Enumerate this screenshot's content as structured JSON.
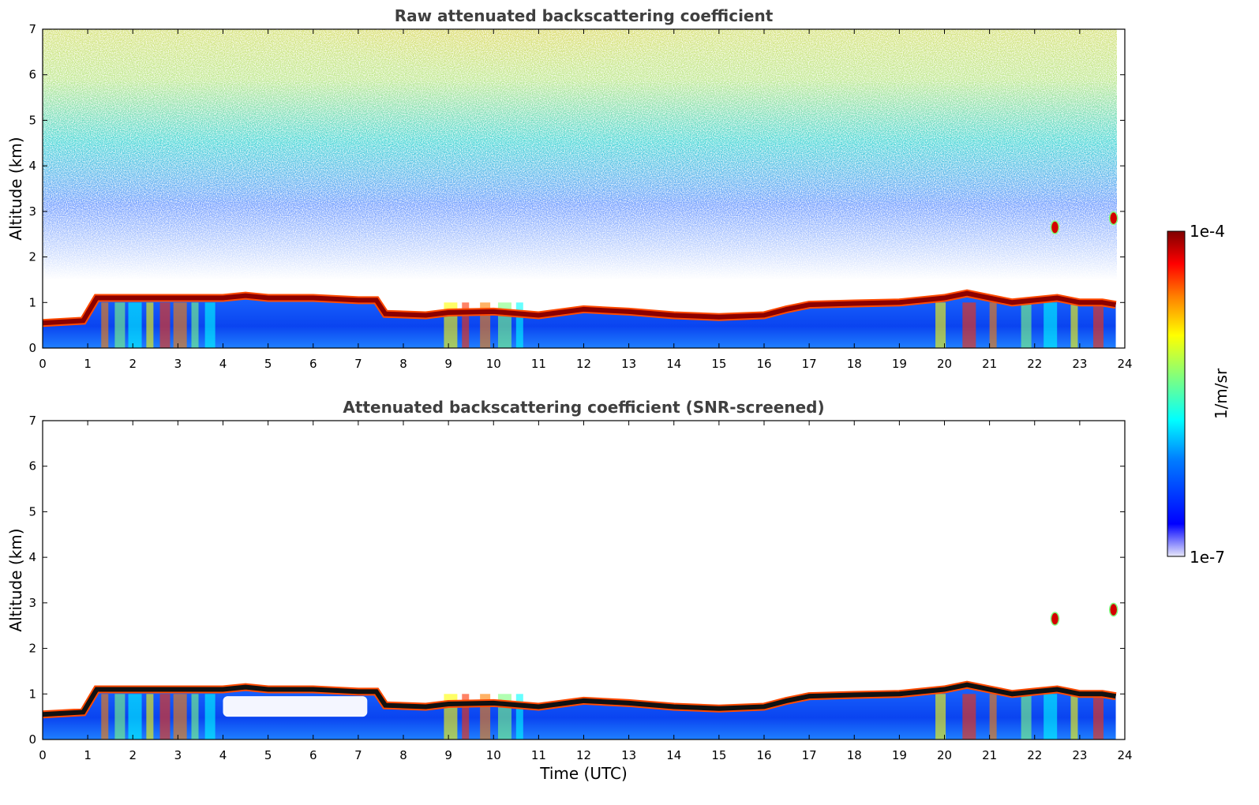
{
  "chart_data": [
    {
      "type": "heatmap",
      "title": "Raw attenuated backscattering coefficient",
      "xlabel": "",
      "ylabel": "Altitude (km)",
      "xlim": [
        0,
        24
      ],
      "ylim": [
        0,
        7
      ],
      "xticks": [
        "0",
        "1",
        "2",
        "3",
        "4",
        "5",
        "6",
        "7",
        "8",
        "9",
        "10",
        "11",
        "12",
        "13",
        "14",
        "15",
        "16",
        "17",
        "18",
        "19",
        "20",
        "21",
        "22",
        "23",
        "24"
      ],
      "yticks": [
        "0",
        "1",
        "2",
        "3",
        "4",
        "5",
        "6",
        "7"
      ],
      "color_scale": "log",
      "mode": "raw",
      "layer_top_km": {
        "time_utc": [
          0,
          0.9,
          1.2,
          2.0,
          3.0,
          4.0,
          4.5,
          5.0,
          6.0,
          7.0,
          7.4,
          7.6,
          8.5,
          9.0,
          10.0,
          11.0,
          12.0,
          13.0,
          14.0,
          15.0,
          16.0,
          16.5,
          17.0,
          18.0,
          19.0,
          19.5,
          20.0,
          20.5,
          21.0,
          21.5,
          22.0,
          22.5,
          23.0,
          23.5,
          23.8
        ],
        "altitude_km": [
          0.55,
          0.6,
          1.1,
          1.1,
          1.1,
          1.1,
          1.15,
          1.1,
          1.1,
          1.05,
          1.05,
          0.75,
          0.72,
          0.78,
          0.8,
          0.72,
          0.85,
          0.8,
          0.72,
          0.68,
          0.72,
          0.85,
          0.95,
          0.98,
          1.0,
          1.05,
          1.1,
          1.2,
          1.1,
          1.0,
          1.05,
          1.1,
          1.0,
          1.0,
          0.95
        ]
      },
      "features": [
        {
          "time_utc": 22.45,
          "altitude_km": 2.65
        },
        {
          "time_utc": 23.75,
          "altitude_km": 2.85
        }
      ]
    },
    {
      "type": "heatmap",
      "title": "Attenuated backscattering coefficient (SNR-screened)",
      "xlabel": "Time (UTC)",
      "ylabel": "Altitude (km)",
      "xlim": [
        0,
        24
      ],
      "ylim": [
        0,
        7
      ],
      "xticks": [
        "0",
        "1",
        "2",
        "3",
        "4",
        "5",
        "6",
        "7",
        "8",
        "9",
        "10",
        "11",
        "12",
        "13",
        "14",
        "15",
        "16",
        "17",
        "18",
        "19",
        "20",
        "21",
        "22",
        "23",
        "24"
      ],
      "yticks": [
        "0",
        "1",
        "2",
        "3",
        "4",
        "5",
        "6",
        "7"
      ],
      "color_scale": "log",
      "mode": "screened",
      "screened_gap": {
        "time_utc": [
          4.0,
          7.2
        ],
        "altitude_km": [
          0.5,
          0.95
        ]
      },
      "features": [
        {
          "time_utc": 22.45,
          "altitude_km": 2.65
        },
        {
          "time_utc": 23.75,
          "altitude_km": 2.85
        }
      ]
    }
  ],
  "colorbar": {
    "label": "1/m/sr",
    "max_label": "1e-4",
    "min_label": "1e-7",
    "colormap": [
      "#e8e8fa",
      "#0000ff",
      "#007fff",
      "#00ffff",
      "#7fff7f",
      "#ffff00",
      "#ff7f00",
      "#ff0000",
      "#7f0000"
    ]
  }
}
